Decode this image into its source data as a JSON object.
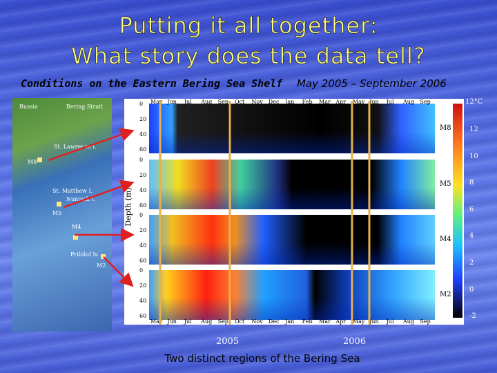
{
  "title": [
    "Putting it all together:",
    "What story does the data tell?"
  ],
  "subtitle": {
    "region": "Conditions on the Eastern Bering Sea Shelf",
    "period": "May 2005 – September 2006"
  },
  "map": {
    "labels": [
      "Russia",
      "Bering Strait",
      "St. Lawrence I.",
      "M8",
      "St. Matthew I.",
      "Nunivak I.",
      "M5",
      "M4",
      "Pribilof Is.",
      "M2"
    ]
  },
  "figure": {
    "months": [
      "May",
      "Jun",
      "Jul",
      "Aug",
      "Sep",
      "Oct",
      "Nov",
      "Dec",
      "Jan",
      "Feb",
      "Mar",
      "Apr",
      "May",
      "Jun",
      "Jul",
      "Aug",
      "Sep"
    ],
    "depth_ticks": [
      "0",
      "20",
      "40",
      "60"
    ],
    "moorings": [
      "M8",
      "M5",
      "M4",
      "M2"
    ],
    "y_label": "Depth (m)",
    "colorbar_unit": "12°C",
    "colorbar_ticks": [
      "12",
      "10",
      "8",
      "6",
      "4",
      "2",
      "0",
      "-2"
    ]
  },
  "years": [
    "2005",
    "2006"
  ],
  "caption": "Two distinct regions of the Bering Sea"
}
